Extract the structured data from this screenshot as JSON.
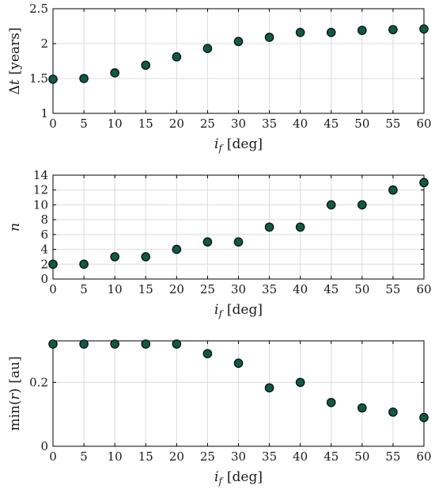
{
  "chart_data": [
    {
      "type": "scatter",
      "x": [
        0,
        5,
        10,
        15,
        20,
        25,
        30,
        35,
        40,
        45,
        50,
        55,
        60
      ],
      "y": [
        1.49,
        1.5,
        1.58,
        1.69,
        1.81,
        1.93,
        2.03,
        2.09,
        2.16,
        2.16,
        2.19,
        2.2,
        2.21
      ],
      "xlim": [
        0,
        60
      ],
      "ylim": [
        1,
        2.5
      ],
      "xticks": [
        "0",
        "5",
        "10",
        "15",
        "20",
        "25",
        "30",
        "35",
        "40",
        "45",
        "50",
        "55",
        "60"
      ],
      "yticks": [
        "1",
        "1.5",
        "2",
        "2.5"
      ],
      "xlabel": {
        "sym": "i",
        "sub": "f",
        "unit": "[deg]"
      },
      "ylabel": {
        "sym": "Δt",
        "unit": "[years]"
      },
      "grid": true
    },
    {
      "type": "scatter",
      "x": [
        0,
        5,
        10,
        15,
        20,
        25,
        30,
        35,
        40,
        45,
        50,
        55,
        60
      ],
      "y": [
        2,
        2,
        3,
        3,
        4,
        5,
        5,
        7,
        7,
        10,
        10,
        12,
        13
      ],
      "xlim": [
        0,
        60
      ],
      "ylim": [
        0,
        14
      ],
      "xticks": [
        "0",
        "5",
        "10",
        "15",
        "20",
        "25",
        "30",
        "35",
        "40",
        "45",
        "50",
        "55",
        "60"
      ],
      "yticks": [
        "0",
        "2",
        "4",
        "6",
        "8",
        "10",
        "12",
        "14"
      ],
      "xlabel": {
        "sym": "i",
        "sub": "f",
        "unit": "[deg]"
      },
      "ylabel": {
        "sym": "n",
        "unit": ""
      },
      "grid": true
    },
    {
      "type": "scatter",
      "x": [
        0,
        5,
        10,
        15,
        20,
        25,
        30,
        35,
        40,
        45,
        50,
        55,
        60
      ],
      "y": [
        0.32,
        0.32,
        0.32,
        0.32,
        0.32,
        0.29,
        0.26,
        0.183,
        0.2,
        0.137,
        0.12,
        0.107,
        0.09
      ],
      "xlim": [
        0,
        60
      ],
      "ylim": [
        0,
        0.33
      ],
      "xticks": [
        "0",
        "5",
        "10",
        "15",
        "20",
        "25",
        "30",
        "35",
        "40",
        "45",
        "50",
        "55",
        "60"
      ],
      "yticks": [
        "0",
        "0.2"
      ],
      "xlabel": {
        "sym": "i",
        "sub": "f",
        "unit": "[deg]"
      },
      "ylabel": {
        "sym": "min(r)",
        "unit": "[au]"
      },
      "grid": true
    }
  ],
  "style": {
    "marker_fill": "#0e5c3c",
    "marker_edge": "#0a0a0a",
    "grid_color": "#dcdcdc",
    "axis_color": "#000000"
  }
}
